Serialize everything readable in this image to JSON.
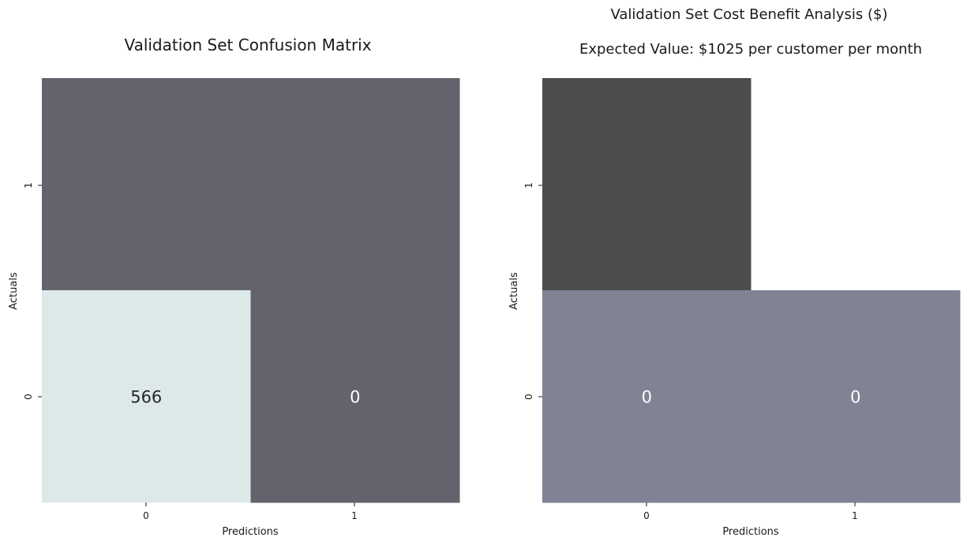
{
  "chart_data": [
    {
      "type": "heatmap",
      "title": "Validation Set Confusion Matrix",
      "subtitle": "",
      "xlabel": "Predictions",
      "ylabel": "Actuals",
      "x_categories": [
        "0",
        "1"
      ],
      "y_categories": [
        "1",
        "0"
      ],
      "cells": [
        {
          "actual": "1",
          "predicted": "0",
          "value": null,
          "label": "",
          "color": "#63636d"
        },
        {
          "actual": "1",
          "predicted": "1",
          "value": null,
          "label": "",
          "color": "#63636d"
        },
        {
          "actual": "0",
          "predicted": "0",
          "value": 566,
          "label": "566",
          "color": "#dde9e8",
          "label_color": "#262626"
        },
        {
          "actual": "0",
          "predicted": "1",
          "value": 0,
          "label": "0",
          "color": "#63636d",
          "label_color": "#ffffff"
        }
      ],
      "grid": false,
      "colorbar": false
    },
    {
      "type": "heatmap",
      "title": "Validation Set Cost Benefit Analysis ($)",
      "subtitle": "Expected Value: $1025 per customer per month",
      "xlabel": "Predictions",
      "ylabel": "Actuals",
      "x_categories": [
        "0",
        "1"
      ],
      "y_categories": [
        "1",
        "0"
      ],
      "cells": [
        {
          "actual": "1",
          "predicted": "0",
          "value": null,
          "label": "",
          "color": "#4d4d4d"
        },
        {
          "actual": "1",
          "predicted": "1",
          "value": null,
          "label": "",
          "color": "#ffffff"
        },
        {
          "actual": "0",
          "predicted": "0",
          "value": 0,
          "label": "0",
          "color": "#828295",
          "label_color": "#ffffff"
        },
        {
          "actual": "0",
          "predicted": "1",
          "value": 0,
          "label": "0",
          "color": "#828295",
          "label_color": "#ffffff"
        }
      ],
      "grid": false,
      "colorbar": false
    }
  ]
}
